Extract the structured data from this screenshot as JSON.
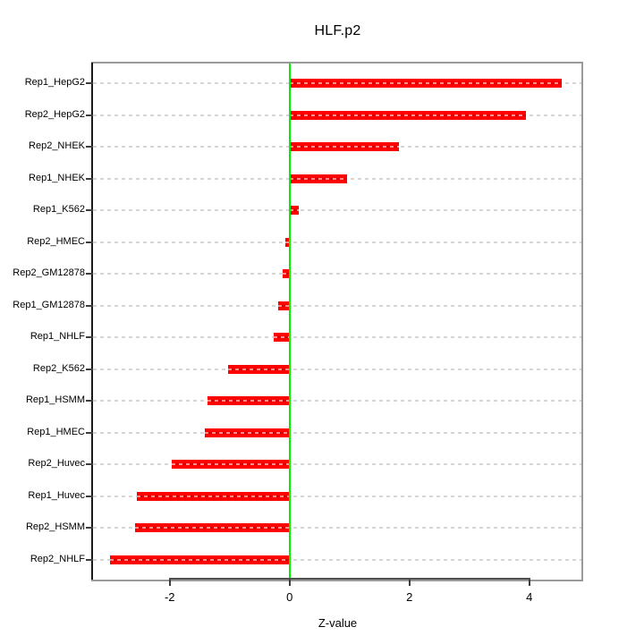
{
  "page": {
    "background": "#ffffff"
  },
  "chart_data": {
    "type": "bar",
    "orientation": "horizontal",
    "title": "HLF.p2",
    "xlabel": "Z-value",
    "ylabel": "",
    "categories": [
      "Rep1_HepG2",
      "Rep2_HepG2",
      "Rep2_NHEK",
      "Rep1_NHEK",
      "Rep1_K562",
      "Rep2_HMEC",
      "Rep2_GM12878",
      "Rep1_GM12878",
      "Rep1_NHLF",
      "Rep2_K562",
      "Rep1_HSMM",
      "Rep1_HMEC",
      "Rep2_Huvec",
      "Rep1_Huvec",
      "Rep2_HSMM",
      "Rep2_NHLF"
    ],
    "values": [
      4.54,
      3.94,
      1.82,
      0.96,
      0.15,
      -0.07,
      -0.12,
      -0.19,
      -0.27,
      -1.03,
      -1.37,
      -1.42,
      -1.97,
      -2.55,
      -2.58,
      -3.0
    ],
    "xticks": [
      -2,
      0,
      2,
      4
    ],
    "xlim": [
      -3.28,
      4.87
    ],
    "grid": "dashed-horizontal",
    "legend": "none",
    "zero_reference_line": 0,
    "colors": {
      "bar": "#ff0000",
      "zero_line": "#00f000",
      "grid": "#d6d6d6",
      "box_border": "#9a9a9a",
      "axis": "#3d3d3d",
      "text": "#000000"
    }
  }
}
